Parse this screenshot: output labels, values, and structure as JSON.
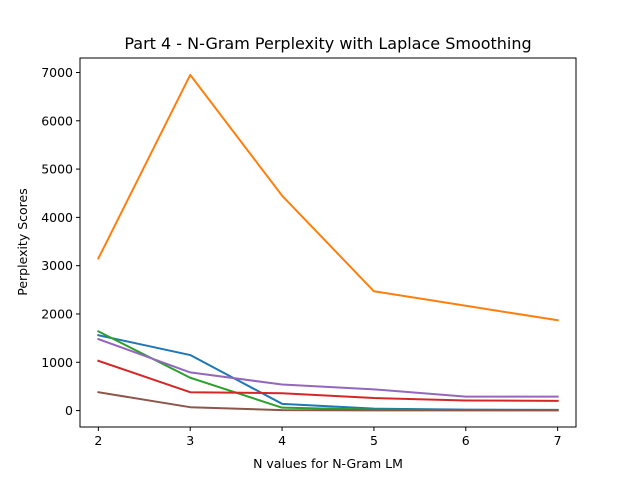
{
  "chart_data": {
    "type": "line",
    "title": "Part 4 - N-Gram Perplexity with Laplace Smoothing",
    "xlabel": "N values for N-Gram LM",
    "ylabel": "Perplexity Scores",
    "x": [
      2,
      3,
      4,
      5,
      6,
      7
    ],
    "xlim": [
      1.8,
      7.2
    ],
    "ylim": [
      -340,
      7300
    ],
    "xticks": [
      2,
      3,
      4,
      5,
      6,
      7
    ],
    "yticks": [
      0,
      1000,
      2000,
      3000,
      4000,
      5000,
      6000,
      7000
    ],
    "grid": false,
    "legend": "none",
    "series": [
      {
        "color": "#1f77b4",
        "values": [
          1560,
          1150,
          140,
          40,
          20,
          15
        ]
      },
      {
        "color": "#ff7f0e",
        "values": [
          3150,
          6950,
          4450,
          2470,
          2170,
          1870
        ]
      },
      {
        "color": "#2ca02c",
        "values": [
          1640,
          680,
          60,
          20,
          10,
          10
        ]
      },
      {
        "color": "#d62728",
        "values": [
          1030,
          380,
          360,
          260,
          210,
          200
        ]
      },
      {
        "color": "#9467bd",
        "values": [
          1480,
          790,
          540,
          440,
          290,
          290
        ]
      },
      {
        "color": "#8c564b",
        "values": [
          380,
          70,
          10,
          5,
          5,
          5
        ]
      }
    ]
  }
}
